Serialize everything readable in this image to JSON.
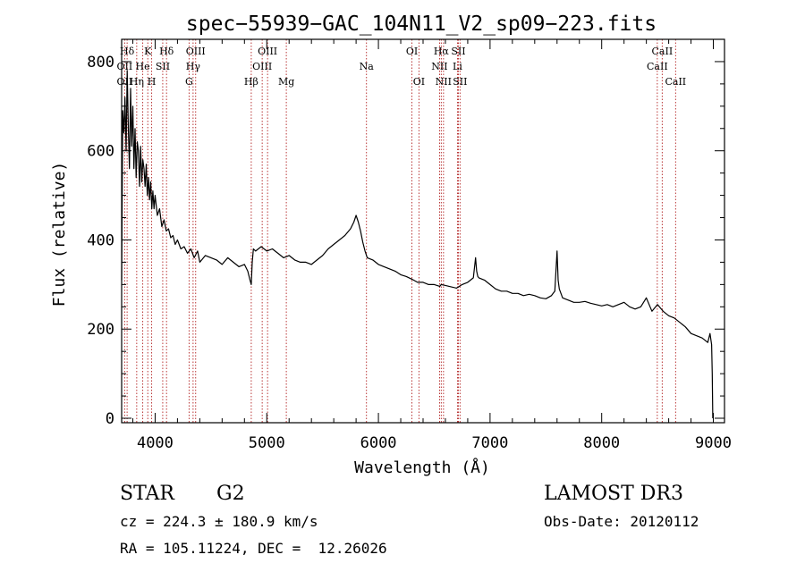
{
  "chart_data": {
    "type": "line",
    "title": "spec−55939−GAC_104N11_V2_sp09−223.fits",
    "xlabel": "Wavelength (Å)",
    "ylabel": "Flux (relative)",
    "xlim": [
      3700,
      9100
    ],
    "ylim": [
      -10,
      850
    ],
    "xticks": [
      4000,
      5000,
      6000,
      7000,
      8000,
      9000
    ],
    "yticks": [
      0,
      200,
      400,
      600,
      800
    ],
    "xtick_labels": [
      "4000",
      "5000",
      "6000",
      "7000",
      "8000",
      "9000"
    ],
    "ytick_labels": [
      "0",
      "200",
      "400",
      "600",
      "800"
    ],
    "series": [
      {
        "name": "flux",
        "x": [
          3700,
          3710,
          3720,
          3730,
          3740,
          3750,
          3760,
          3770,
          3780,
          3790,
          3800,
          3810,
          3820,
          3830,
          3840,
          3850,
          3860,
          3870,
          3880,
          3890,
          3900,
          3910,
          3920,
          3930,
          3940,
          3950,
          3960,
          3970,
          3980,
          3990,
          4000,
          4020,
          4040,
          4060,
          4080,
          4100,
          4120,
          4140,
          4160,
          4180,
          4200,
          4230,
          4260,
          4290,
          4320,
          4350,
          4380,
          4400,
          4450,
          4500,
          4550,
          4600,
          4650,
          4700,
          4750,
          4800,
          4830,
          4850,
          4861,
          4870,
          4880,
          4900,
          4950,
          5000,
          5050,
          5100,
          5150,
          5200,
          5250,
          5300,
          5350,
          5400,
          5450,
          5500,
          5550,
          5600,
          5650,
          5700,
          5750,
          5780,
          5800,
          5820,
          5840,
          5860,
          5880,
          5900,
          5950,
          6000,
          6050,
          6100,
          6150,
          6200,
          6250,
          6300,
          6350,
          6400,
          6450,
          6500,
          6550,
          6563,
          6600,
          6650,
          6700,
          6750,
          6800,
          6850,
          6870,
          6880,
          6890,
          6900,
          6950,
          7000,
          7050,
          7100,
          7150,
          7200,
          7250,
          7300,
          7350,
          7400,
          7450,
          7500,
          7550,
          7580,
          7600,
          7610,
          7620,
          7650,
          7700,
          7750,
          7800,
          7850,
          7900,
          7950,
          8000,
          8050,
          8100,
          8150,
          8200,
          8250,
          8300,
          8350,
          8400,
          8450,
          8500,
          8550,
          8600,
          8650,
          8700,
          8750,
          8800,
          8850,
          8900,
          8950,
          8970,
          8985,
          8990,
          8995
        ],
        "values": [
          310,
          690,
          640,
          720,
          600,
          780,
          650,
          560,
          740,
          610,
          700,
          560,
          650,
          540,
          620,
          600,
          520,
          610,
          530,
          580,
          560,
          520,
          570,
          500,
          540,
          490,
          530,
          470,
          510,
          470,
          500,
          455,
          470,
          430,
          445,
          420,
          425,
          405,
          410,
          390,
          400,
          380,
          385,
          370,
          380,
          360,
          375,
          350,
          365,
          360,
          355,
          345,
          360,
          350,
          340,
          345,
          330,
          310,
          300,
          350,
          380,
          375,
          385,
          375,
          380,
          370,
          360,
          365,
          355,
          350,
          350,
          345,
          355,
          365,
          380,
          390,
          400,
          410,
          425,
          440,
          455,
          440,
          420,
          395,
          375,
          360,
          355,
          345,
          340,
          335,
          330,
          322,
          318,
          312,
          305,
          305,
          300,
          300,
          296,
          300,
          298,
          295,
          292,
          300,
          305,
          315,
          360,
          330,
          318,
          315,
          310,
          300,
          290,
          285,
          285,
          280,
          280,
          275,
          278,
          275,
          270,
          268,
          275,
          285,
          375,
          310,
          290,
          270,
          265,
          260,
          260,
          262,
          258,
          255,
          252,
          255,
          250,
          255,
          260,
          250,
          245,
          250,
          270,
          240,
          255,
          240,
          230,
          225,
          215,
          205,
          190,
          185,
          180,
          170,
          190,
          165,
          100,
          0
        ]
      }
    ],
    "spectral_lines": [
      {
        "label": "Hδ",
        "x": 3749,
        "row": 1
      },
      {
        "label": "OII",
        "x": 3727,
        "row": 2
      },
      {
        "label": "OII",
        "x": 3727,
        "row": 3
      },
      {
        "label": "Hη",
        "x": 3835,
        "row": 3
      },
      {
        "label": "K",
        "x": 3934,
        "row": 1
      },
      {
        "label": "He",
        "x": 3889,
        "row": 2
      },
      {
        "label": "SII",
        "x": 4068,
        "row": 2
      },
      {
        "label": "H",
        "x": 3969,
        "row": 3
      },
      {
        "label": "Hδ",
        "x": 4102,
        "row": 1
      },
      {
        "label": "OIII",
        "x": 4363,
        "row": 1
      },
      {
        "label": "Hγ",
        "x": 4340,
        "row": 2
      },
      {
        "label": "G",
        "x": 4304,
        "row": 3
      },
      {
        "label": "OIII",
        "x": 5007,
        "row": 1
      },
      {
        "label": "OIII",
        "x": 4959,
        "row": 2
      },
      {
        "label": "Hβ",
        "x": 4861,
        "row": 3
      },
      {
        "label": "Mg",
        "x": 5175,
        "row": 3
      },
      {
        "label": "Na",
        "x": 5893,
        "row": 2
      },
      {
        "label": "OI",
        "x": 6300,
        "row": 1
      },
      {
        "label": "OI",
        "x": 6363,
        "row": 3
      },
      {
        "label": "Hα",
        "x": 6563,
        "row": 1
      },
      {
        "label": "NII",
        "x": 6548,
        "row": 2
      },
      {
        "label": "NII",
        "x": 6583,
        "row": 3
      },
      {
        "label": "SII",
        "x": 6716,
        "row": 1
      },
      {
        "label": "Li",
        "x": 6708,
        "row": 2
      },
      {
        "label": "SII",
        "x": 6731,
        "row": 3
      },
      {
        "label": "CaII",
        "x": 8542,
        "row": 1
      },
      {
        "label": "CaII",
        "x": 8498,
        "row": 2
      },
      {
        "label": "CaII",
        "x": 8662,
        "row": 3
      }
    ]
  },
  "info": {
    "object_class": "STAR",
    "subclass": "G2",
    "survey": "LAMOST DR3",
    "velocity": "cz = 224.3 ± 180.9 km/s",
    "obs_date": "Obs-Date: 20120112",
    "coords": "RA = 105.11224, DEC =  12.26026"
  },
  "colors": {
    "line_markers": "#b22222",
    "spectrum": "#000000",
    "axes": "#000000"
  }
}
